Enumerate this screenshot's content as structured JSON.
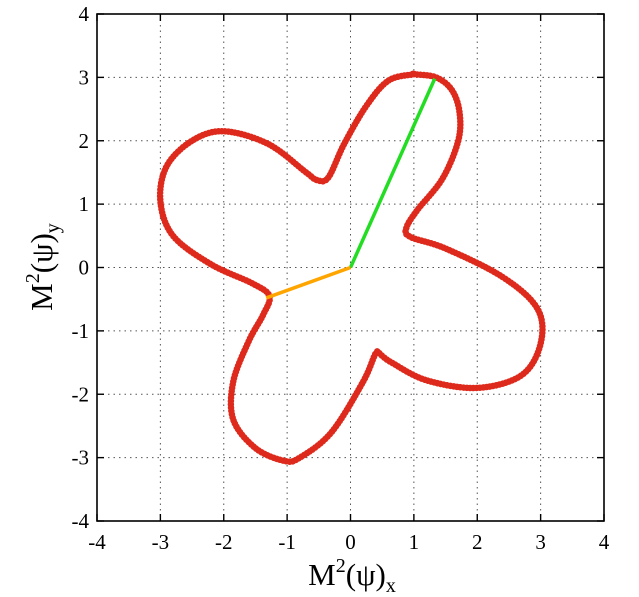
{
  "chart_data": {
    "type": "line",
    "xlim": [
      -4,
      4
    ],
    "ylim": [
      -4,
      4
    ],
    "x_ticks": [
      -4,
      -3,
      -2,
      -1,
      0,
      1,
      2,
      3,
      4
    ],
    "y_ticks": [
      -4,
      -3,
      -2,
      -1,
      0,
      1,
      2,
      3,
      4
    ],
    "grid": true,
    "xlabel": {
      "base": "M",
      "sup": "2",
      "mid": "(ψ)",
      "sub": "x"
    },
    "ylabel": {
      "base": "M",
      "sup": "2",
      "mid": "(ψ)",
      "sub": "y"
    },
    "series": [
      {
        "kind": "closed-curve",
        "color": "#dd2a1c",
        "marker": "dots",
        "x": [
          1.0,
          1.35,
          1.6,
          1.72,
          1.7,
          1.45,
          1.05,
          0.88,
          0.95,
          1.5,
          2.4,
          2.95,
          3.0,
          2.7,
          2.0,
          1.2,
          0.65,
          0.48,
          0.4,
          0.2,
          -0.3,
          -0.8,
          -1.05,
          -1.5,
          -1.85,
          -1.85,
          -1.6,
          -1.38,
          -1.28,
          -1.55,
          -2.2,
          -2.8,
          -3.0,
          -2.9,
          -2.5,
          -2.0,
          -1.3,
          -0.7,
          -0.53,
          -0.35,
          -0.1,
          0.25,
          0.6,
          1.0
        ],
        "y": [
          3.05,
          3.0,
          2.8,
          2.45,
          2.0,
          1.4,
          0.9,
          0.62,
          0.48,
          0.3,
          -0.15,
          -0.65,
          -1.2,
          -1.7,
          -1.9,
          -1.78,
          -1.5,
          -1.38,
          -1.35,
          -1.8,
          -2.6,
          -3.0,
          -3.05,
          -2.85,
          -2.4,
          -1.8,
          -1.15,
          -0.75,
          -0.45,
          -0.25,
          0.05,
          0.5,
          1.05,
          1.6,
          2.0,
          2.15,
          1.95,
          1.5,
          1.38,
          1.42,
          1.95,
          2.55,
          2.95,
          3.05
        ]
      },
      {
        "kind": "segment",
        "color": "#22dd22",
        "x": [
          0,
          1.33
        ],
        "y": [
          0,
          2.98
        ]
      },
      {
        "kind": "segment",
        "color": "#ffa500",
        "x": [
          0,
          -1.33
        ],
        "y": [
          0,
          -0.48
        ]
      }
    ]
  }
}
